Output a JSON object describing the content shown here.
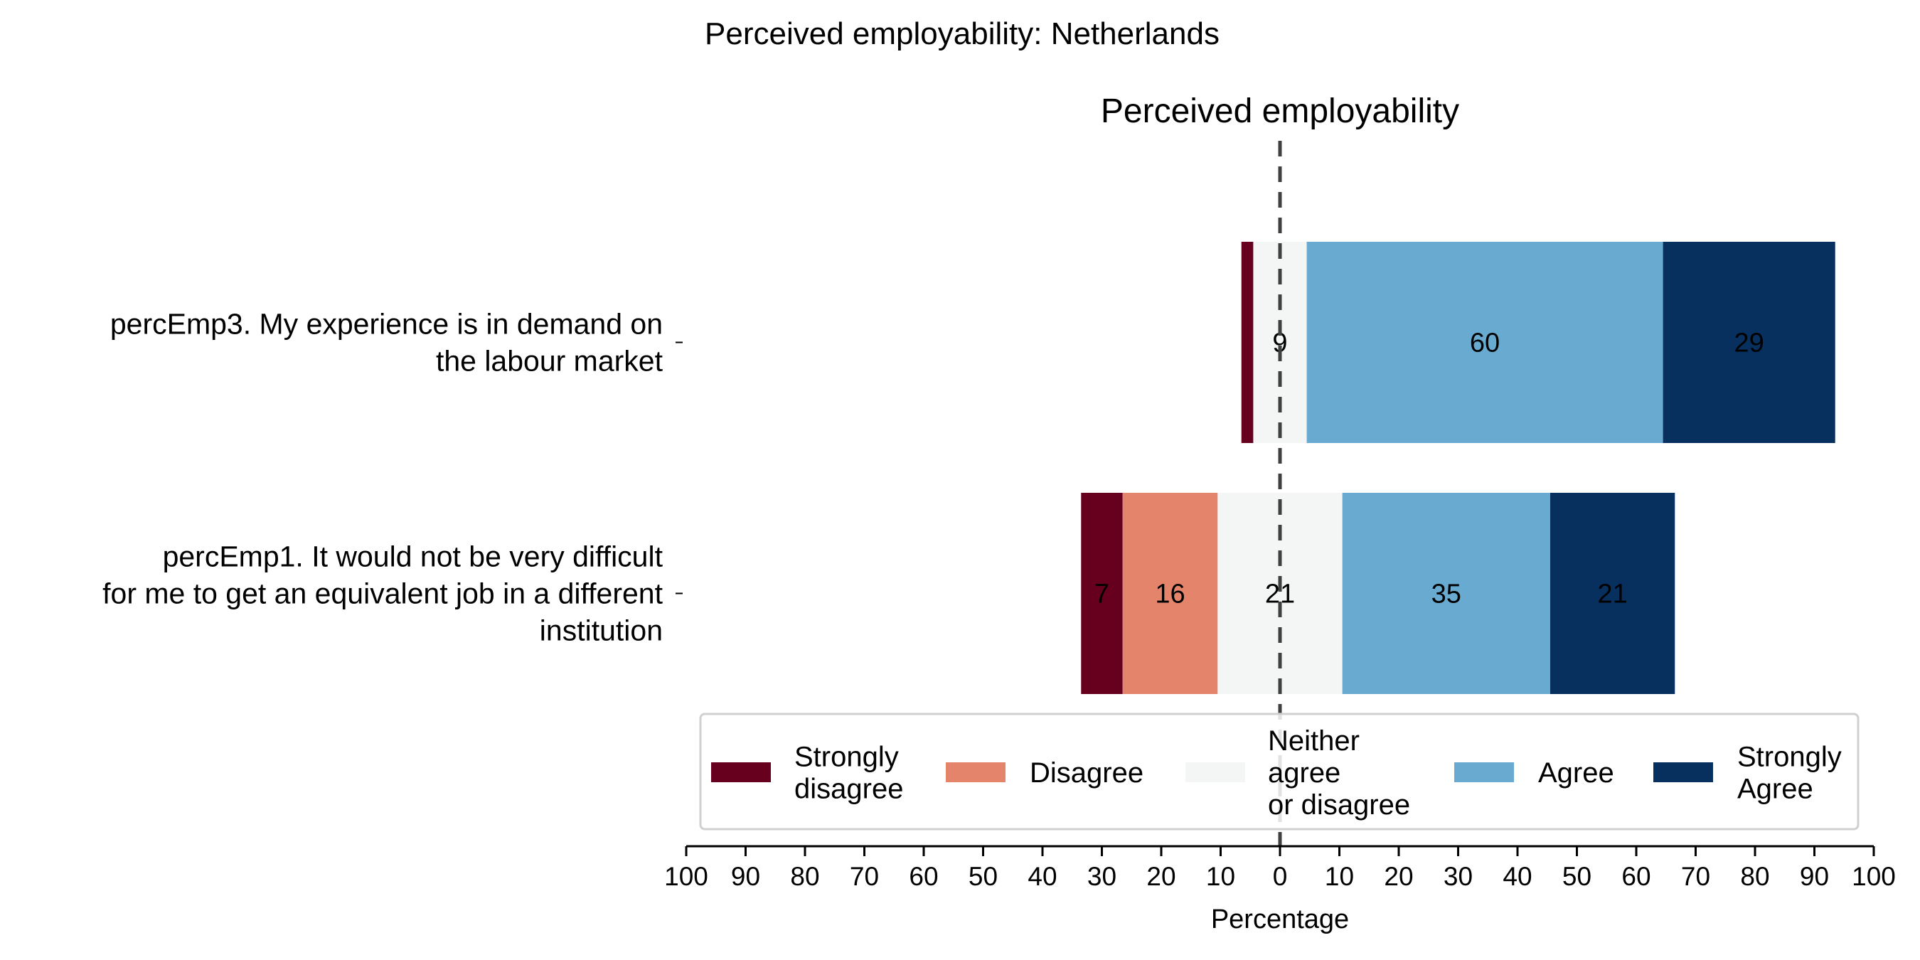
{
  "chart_data": {
    "type": "bar",
    "orientation": "horizontal",
    "stacked": true,
    "diverging": true,
    "title": "Perceived employability: Netherlands",
    "subtitle": "Perceived employability",
    "xlabel": "Percentage",
    "ylabel": "",
    "xlim": [
      -100,
      100
    ],
    "xticks": [
      -100,
      -90,
      -80,
      -70,
      -60,
      -50,
      -40,
      -30,
      -20,
      -10,
      0,
      10,
      20,
      30,
      40,
      50,
      60,
      70,
      80,
      90,
      100
    ],
    "xtick_labels": [
      "100",
      "90",
      "80",
      "70",
      "60",
      "50",
      "40",
      "30",
      "20",
      "10",
      "0",
      "10",
      "20",
      "30",
      "40",
      "50",
      "60",
      "70",
      "80",
      "90",
      "100"
    ],
    "grid": false,
    "legend_position": "bottom",
    "categories": [
      {
        "label_lines": [
          "percEmp3. My experience is in demand on",
          "the labour market"
        ]
      },
      {
        "label_lines": [
          "percEmp1. It would not be very difficult",
          "for me to get an equivalent job in a different",
          "institution"
        ]
      }
    ],
    "series": [
      {
        "name": "Strongly disagree",
        "legend_lines": [
          "Strongly",
          "disagree"
        ],
        "color": "#67001f",
        "values": [
          2,
          7
        ],
        "labels": [
          "",
          "7"
        ]
      },
      {
        "name": "Disagree",
        "legend_lines": [
          "Disagree"
        ],
        "color": "#e4856b",
        "values": [
          0,
          16
        ],
        "labels": [
          "",
          "16"
        ]
      },
      {
        "name": "Neither agree or disagree",
        "legend_lines": [
          "Neither",
          "agree",
          "or disagree"
        ],
        "color": "#f4f6f6",
        "values": [
          9,
          21
        ],
        "labels": [
          "9",
          "21"
        ]
      },
      {
        "name": "Agree",
        "legend_lines": [
          "Agree"
        ],
        "color": "#68aad0",
        "values": [
          60,
          35
        ],
        "labels": [
          "60",
          "35"
        ]
      },
      {
        "name": "Strongly Agree",
        "legend_lines": [
          "Strongly",
          "Agree"
        ],
        "color": "#08305e",
        "values": [
          29,
          21
        ],
        "labels": [
          "29",
          "21"
        ]
      }
    ]
  }
}
